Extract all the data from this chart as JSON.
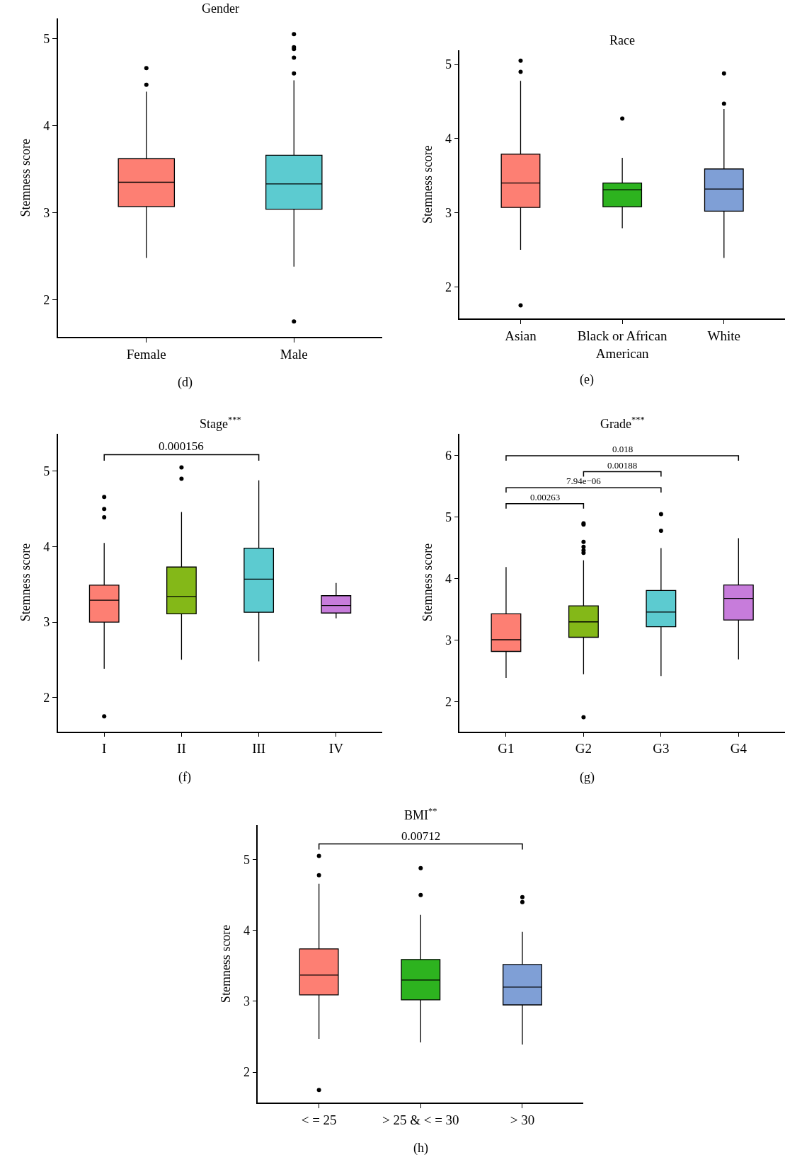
{
  "chart_data": [
    {
      "type": "box",
      "title": "Gender",
      "ylabel": "Stemness score",
      "categories": [
        "Female",
        "Male"
      ],
      "colors": [
        "#fd7f73",
        "#5ccbd0"
      ],
      "ylim": [
        1.57,
        5.23
      ],
      "yticks": [
        2,
        3,
        4,
        5
      ],
      "annotations": [
        "(d)"
      ],
      "boxes": [
        {
          "low": 2.48,
          "q1": 3.07,
          "median": 3.35,
          "q3": 3.62,
          "high": 4.39,
          "outliers": [
            4.47,
            4.66
          ]
        },
        {
          "low": 2.38,
          "q1": 3.04,
          "median": 3.33,
          "q3": 3.66,
          "high": 4.52,
          "outliers": [
            1.75,
            4.6,
            4.78,
            4.88,
            4.9,
            5.05
          ]
        }
      ]
    },
    {
      "type": "box",
      "title": "Race",
      "ylabel": "Stemness score",
      "categories": [
        "Asian",
        "Black or African American",
        "White"
      ],
      "colors": [
        "#fd7f73",
        "#2db31f",
        "#7f9fd6"
      ],
      "ylim": [
        1.57,
        5.19
      ],
      "yticks": [
        2,
        3,
        4,
        5
      ],
      "annotations": [
        "(e)"
      ],
      "boxes": [
        {
          "low": 2.5,
          "q1": 3.07,
          "median": 3.4,
          "q3": 3.79,
          "high": 4.78,
          "outliers": [
            1.75,
            4.9,
            5.05
          ]
        },
        {
          "low": 2.79,
          "q1": 3.08,
          "median": 3.31,
          "q3": 3.4,
          "high": 3.74,
          "outliers": [
            4.27
          ]
        },
        {
          "low": 2.39,
          "q1": 3.02,
          "median": 3.32,
          "q3": 3.59,
          "high": 4.4,
          "outliers": [
            4.47,
            4.88
          ]
        }
      ]
    },
    {
      "type": "box",
      "title": "Stage$^{***}$",
      "ylabel": "Stemness score",
      "categories": [
        "I",
        "II",
        "III",
        "IV"
      ],
      "colors": [
        "#fd7f73",
        "#84b818",
        "#5ccbd0",
        "#c77cdb"
      ],
      "ylim": [
        1.55,
        5.5
      ],
      "yticks": [
        2,
        3,
        4,
        5
      ],
      "annotations": [
        "(f)",
        "0.000156"
      ],
      "boxes": [
        {
          "low": 2.38,
          "q1": 3.0,
          "median": 3.29,
          "q3": 3.49,
          "high": 4.05,
          "outliers": [
            1.75,
            4.39,
            4.5,
            4.66
          ]
        },
        {
          "low": 2.5,
          "q1": 3.11,
          "median": 3.34,
          "q3": 3.73,
          "high": 4.46,
          "outliers": [
            4.9,
            5.05
          ]
        },
        {
          "low": 2.48,
          "q1": 3.13,
          "median": 3.57,
          "q3": 3.98,
          "high": 4.88
        },
        {
          "low": 3.05,
          "q1": 3.12,
          "median": 3.22,
          "q3": 3.35,
          "high": 3.52
        }
      ]
    },
    {
      "type": "box",
      "title": "Grade$^{***}$",
      "ylabel": "Stemness score",
      "categories": [
        "G1",
        "G2",
        "G3",
        "G4"
      ],
      "colors": [
        "#fd7f73",
        "#84b818",
        "#5ccbd0",
        "#c77cdb"
      ],
      "ylim": [
        1.52,
        6.36
      ],
      "yticks": [
        2,
        3,
        4,
        5,
        6
      ],
      "annotations": [
        "(g)",
        "0.018",
        "0.00188",
        "7.94e−06",
        "0.00263"
      ],
      "boxes": [
        {
          "low": 2.39,
          "q1": 2.82,
          "median": 3.01,
          "q3": 3.43,
          "high": 4.19
        },
        {
          "low": 2.45,
          "q1": 3.05,
          "median": 3.3,
          "q3": 3.56,
          "high": 4.3,
          "outliers": [
            1.75,
            4.42,
            4.46,
            4.52,
            4.6,
            4.88,
            4.9
          ]
        },
        {
          "low": 2.42,
          "q1": 3.22,
          "median": 3.46,
          "q3": 3.81,
          "high": 4.5,
          "outliers": [
            4.78,
            5.05
          ]
        },
        {
          "low": 2.69,
          "q1": 3.33,
          "median": 3.68,
          "q3": 3.9,
          "high": 4.66
        }
      ]
    },
    {
      "type": "box",
      "title": "BMI$^{**}$",
      "ylabel": "Stemness score",
      "categories": [
        "< = 25",
        "> 25 & < = 30",
        "> 30"
      ],
      "colors": [
        "#fd7f73",
        "#2db31f",
        "#7f9fd6"
      ],
      "ylim": [
        1.57,
        5.49
      ],
      "yticks": [
        2,
        3,
        4,
        5
      ],
      "annotations": [
        "(h)",
        "0.00712"
      ],
      "boxes": [
        {
          "low": 2.47,
          "q1": 3.09,
          "median": 3.37,
          "q3": 3.74,
          "high": 4.66,
          "outliers": [
            1.75,
            4.78,
            5.05
          ]
        },
        {
          "low": 2.42,
          "q1": 3.02,
          "median": 3.3,
          "q3": 3.59,
          "high": 4.22,
          "outliers": [
            4.5,
            4.88
          ]
        },
        {
          "low": 2.39,
          "q1": 2.95,
          "median": 3.2,
          "q3": 3.52,
          "high": 3.98,
          "outliers": [
            4.4,
            4.47
          ]
        }
      ]
    }
  ]
}
